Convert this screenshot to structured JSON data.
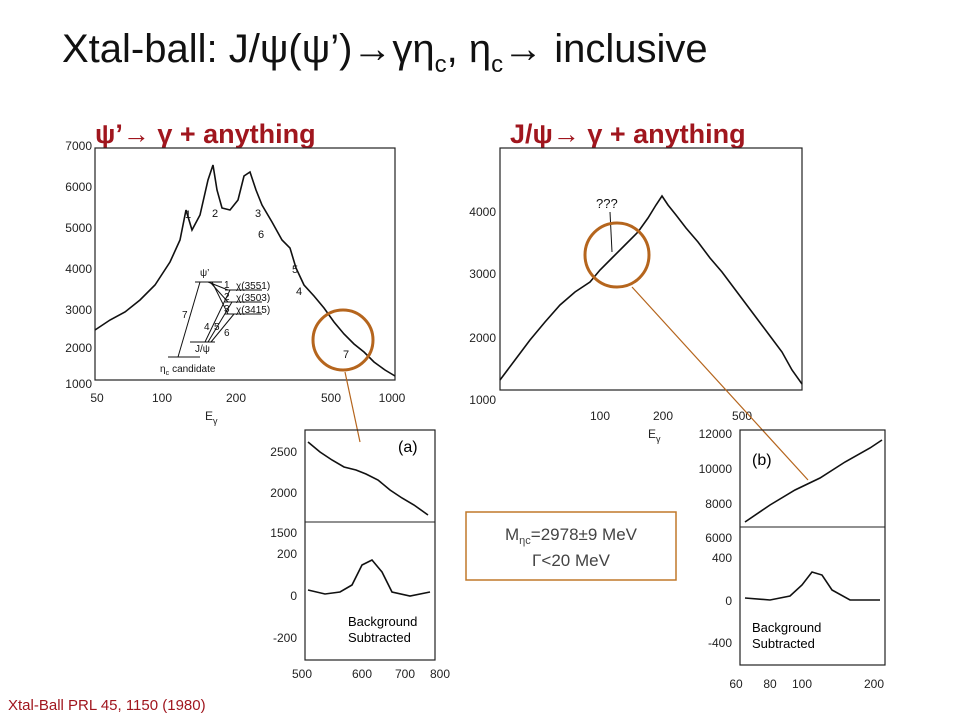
{
  "title": [
    "Xtal-ball: J/ψ(ψ’)→γη",
    "c",
    ", η",
    "c",
    "→ inclusive"
  ],
  "left": {
    "heading": "ψ’→ γ + anything",
    "yticks": [
      "7000",
      "6000",
      "5000",
      "4000",
      "3000",
      "2000",
      "1000"
    ],
    "xticks": [
      "50",
      "100",
      "200",
      "500",
      "1000"
    ],
    "xlabel": [
      "E",
      "γ"
    ],
    "peaks": [
      "1",
      "2",
      "3",
      "6",
      "5",
      "4",
      "7"
    ],
    "levels": {
      "top": "ψ’",
      "chi": [
        "χ(3551)",
        "χ(3503)",
        "χ(3415)"
      ],
      "jpsi": "J/ψ",
      "etac": "η",
      "etac_sub": "c",
      "candidate": "candidate",
      "numbers": [
        "7",
        "1",
        "2",
        "3",
        "4",
        "5",
        "6"
      ]
    }
  },
  "right": {
    "heading": "J/ψ→ γ + anything",
    "yticks": [
      "4000",
      "3000",
      "2000",
      "1000"
    ],
    "xticks": [
      "100",
      "200",
      "500"
    ],
    "xlabel": [
      "E",
      "γ"
    ],
    "annotation": "???"
  },
  "inset_a": {
    "tag": "(a)",
    "yticks_top": [
      "2500",
      "2000",
      "1500"
    ],
    "yticks_bottom": [
      "200",
      "0",
      "-200"
    ],
    "xticks": [
      "500",
      "600",
      "700",
      "800"
    ],
    "note": [
      "Background",
      "Subtracted"
    ]
  },
  "inset_b": {
    "tag": "(b)",
    "yticks_top": [
      "12000",
      "10000",
      "8000",
      "6000"
    ],
    "yticks_bottom": [
      "400",
      "0",
      "-400"
    ],
    "xticks": [
      "60",
      "80",
      "100",
      "200"
    ],
    "note": [
      "Background",
      "Subtracted"
    ]
  },
  "result": {
    "mass_prefix": "M",
    "mass_sub": "ηc",
    "mass": "=2978±9 MeV",
    "width": "Γ<20 MeV"
  },
  "footer": "Xtal-Ball PRL 45, 1150 (1980)"
}
